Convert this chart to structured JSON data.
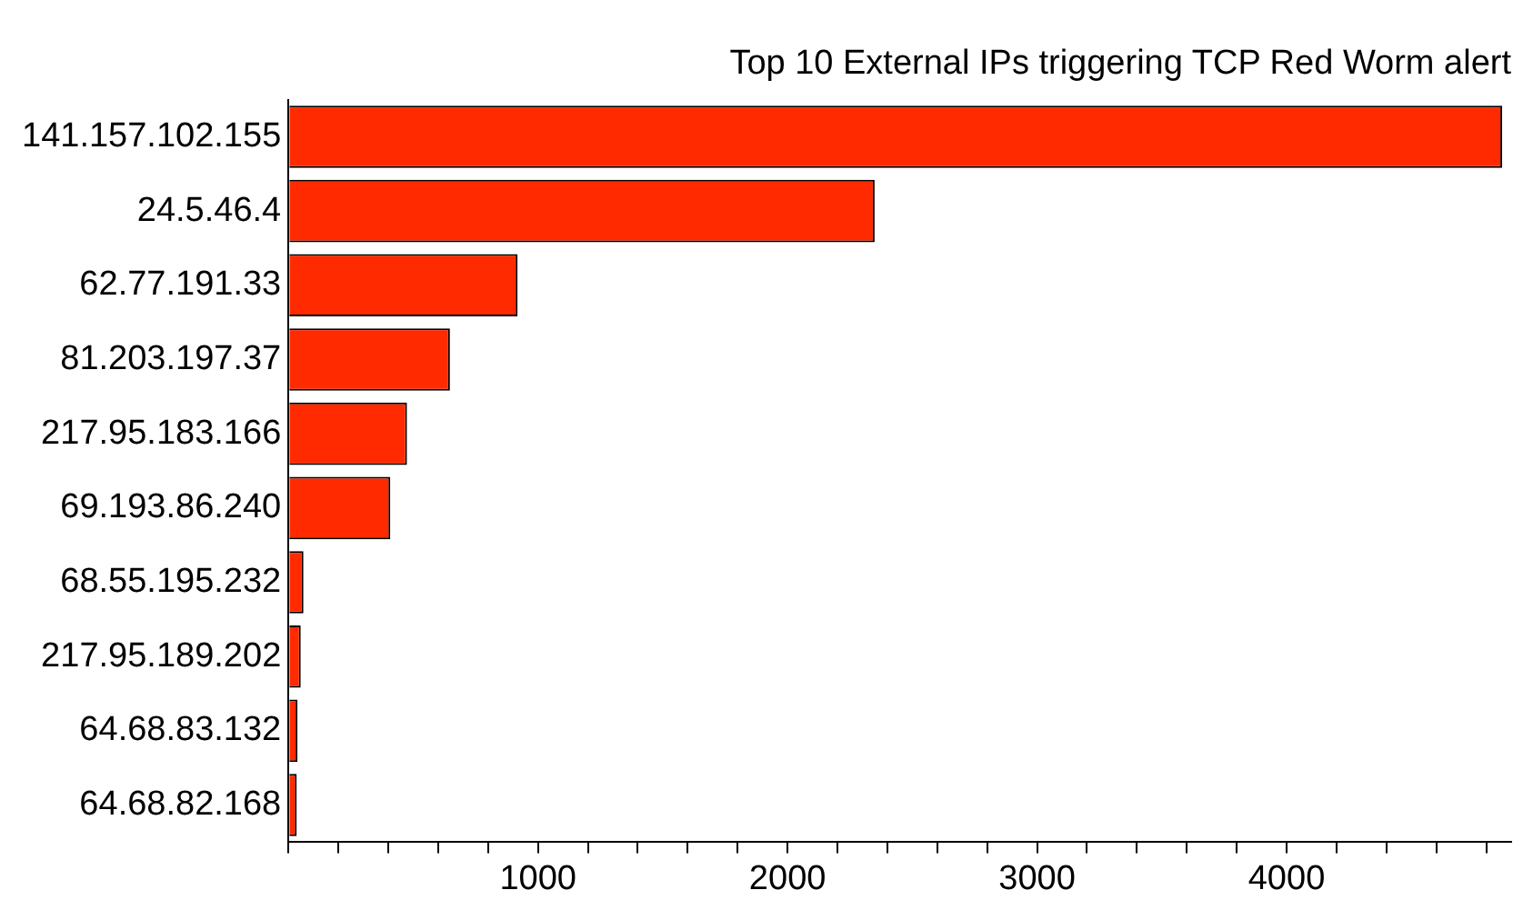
{
  "chart_data": {
    "type": "bar",
    "orientation": "horizontal",
    "title": "Top 10 External IPs triggering TCP Red Worm alert",
    "categories": [
      "141.157.102.155",
      "24.5.46.4",
      "62.77.191.33",
      "81.203.197.37",
      "217.95.183.166",
      "69.193.86.240",
      "68.55.195.232",
      "217.95.189.202",
      "64.68.83.132",
      "64.68.82.168"
    ],
    "values": [
      4864,
      2349,
      918,
      647,
      475,
      408,
      60,
      49,
      36,
      33
    ],
    "color": "#ff2a00",
    "xlim": [
      0,
      4900
    ],
    "xticks": [
      {
        "value": 0,
        "label": null
      },
      {
        "value": 200,
        "label": null
      },
      {
        "value": 400,
        "label": null
      },
      {
        "value": 600,
        "label": null
      },
      {
        "value": 800,
        "label": null
      },
      1000,
      {
        "value": 1200,
        "label": null
      },
      {
        "value": 1400,
        "label": null
      },
      {
        "value": 1600,
        "label": null
      },
      {
        "value": 1800,
        "label": null
      },
      2000,
      {
        "value": 2200,
        "label": null
      },
      {
        "value": 2400,
        "label": null
      },
      {
        "value": 2600,
        "label": null
      },
      {
        "value": 2800,
        "label": null
      },
      3000,
      {
        "value": 3200,
        "label": null
      },
      {
        "value": 3400,
        "label": null
      },
      {
        "value": 3600,
        "label": null
      },
      {
        "value": 3800,
        "label": null
      },
      4000,
      {
        "value": 4200,
        "label": null
      },
      {
        "value": 4400,
        "label": null
      },
      {
        "value": 4600,
        "label": null
      },
      {
        "value": 4800,
        "label": null
      }
    ],
    "grid": false,
    "legend": false
  }
}
